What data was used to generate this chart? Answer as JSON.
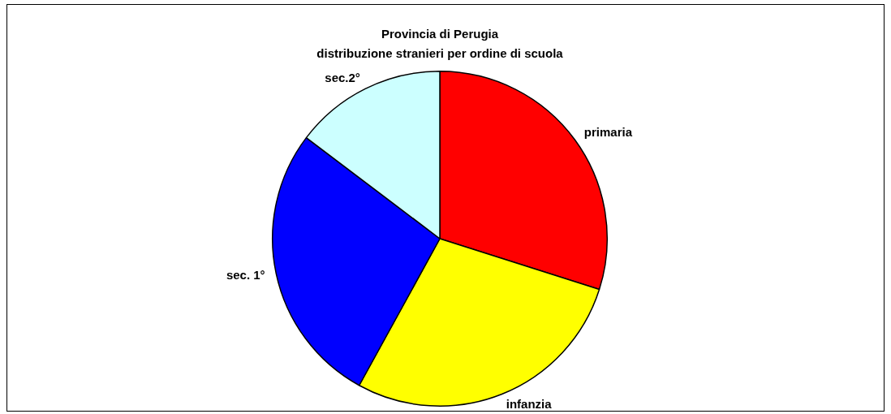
{
  "chart_data": {
    "type": "pie",
    "title": "Provincia di Perugia\ndistribuzione stranieri per ordine di scuola",
    "categories": [
      "primaria",
      "infanzia",
      "sec. 1°",
      "sec.2°"
    ],
    "values": [
      29.9,
      28.1,
      27.3,
      14.7
    ],
    "colors": [
      "#ff0000",
      "#ffff00",
      "#0000ff",
      "#ccffff"
    ],
    "legend": false
  }
}
